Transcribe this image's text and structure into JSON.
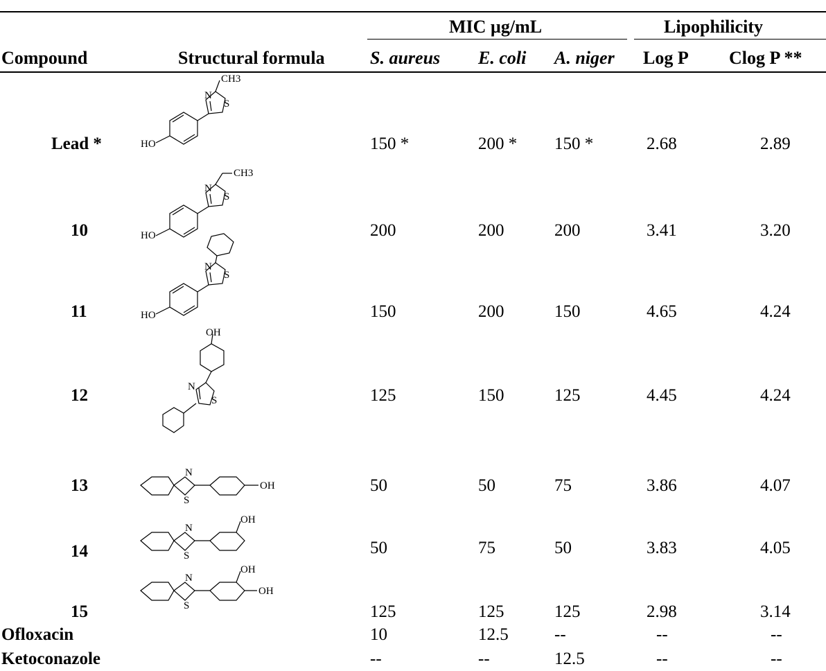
{
  "table": {
    "header": {
      "compound": "Compound",
      "structural_formula": "Structural formula",
      "mic_group": "MIC µg/mL",
      "lipophilicity_group": "Lipophilicity",
      "s_aureus": "S. aureus",
      "e_coli": "E. coli",
      "a_niger": "A. niger",
      "log_p": "Log P",
      "clog_p": "Clog P **"
    },
    "rows": [
      {
        "compound": "Lead *",
        "s_aureus": "150 *",
        "e_coli": "200 *",
        "a_niger": "150 *",
        "log_p": "2.68",
        "clog_p": "2.89",
        "structure": "2-methyl-4-(4-hydroxyphenyl)thiazole"
      },
      {
        "compound": "10",
        "s_aureus": "200",
        "e_coli": "200",
        "a_niger": "200",
        "log_p": "3.41",
        "clog_p": "3.20",
        "structure": "2-ethyl-4-(4-hydroxyphenyl)thiazole"
      },
      {
        "compound": "11",
        "s_aureus": "150",
        "e_coli": "200",
        "a_niger": "150",
        "log_p": "4.65",
        "clog_p": "4.24",
        "structure": "2-phenyl-4-(4-hydroxyphenyl)thiazole"
      },
      {
        "compound": "12",
        "s_aureus": "125",
        "e_coli": "150",
        "a_niger": "125",
        "log_p": "4.45",
        "clog_p": "4.24",
        "structure": "2-(4-hydroxyphenyl)-4-phenylthiazole"
      },
      {
        "compound": "13",
        "s_aureus": "50",
        "e_coli": "50",
        "a_niger": "75",
        "log_p": "3.86",
        "clog_p": "4.07",
        "structure": "2-(4-hydroxyphenyl)benzothiazole"
      },
      {
        "compound": "14",
        "s_aureus": "50",
        "e_coli": "75",
        "a_niger": "50",
        "log_p": "3.83",
        "clog_p": "4.05",
        "structure": "2-(3-hydroxyphenyl)benzothiazole"
      },
      {
        "compound": "15",
        "s_aureus": "125",
        "e_coli": "125",
        "a_niger": "125",
        "log_p": "2.98",
        "clog_p": "3.14",
        "structure": "2-(3,4-dihydroxyphenyl)benzothiazole"
      },
      {
        "compound": "Ofloxacin",
        "s_aureus": "10",
        "e_coli": "12.5",
        "a_niger": "--",
        "log_p": "--",
        "clog_p": "--",
        "structure": ""
      },
      {
        "compound": "Ketoconazole",
        "s_aureus": "--",
        "e_coli": "--",
        "a_niger": "12.5",
        "log_p": "--",
        "clog_p": "--",
        "structure": ""
      }
    ]
  },
  "structure_labels": {
    "ch3": "CH3",
    "n": "N",
    "s": "S",
    "ho": "HO",
    "oh": "OH"
  }
}
